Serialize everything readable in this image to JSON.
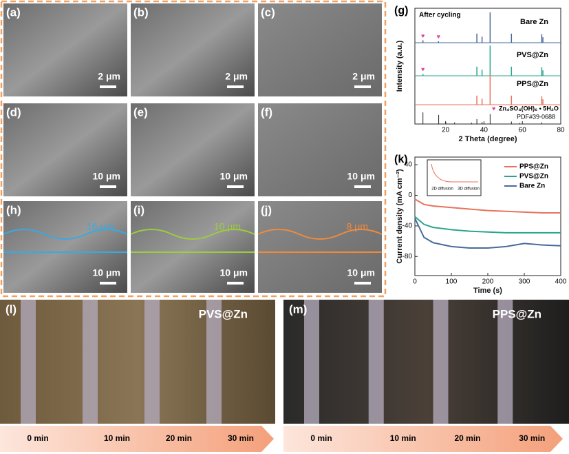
{
  "panels": [
    {
      "label": "(a)",
      "scale": "2 μm"
    },
    {
      "label": "(b)",
      "scale": "2 μm"
    },
    {
      "label": "(c)",
      "scale": "2 μm"
    },
    {
      "label": "(d)",
      "scale": "10 μm"
    },
    {
      "label": "(e)",
      "scale": "10 μm"
    },
    {
      "label": "(f)",
      "scale": "10 μm"
    },
    {
      "label": "(h)",
      "scale": "10 μm",
      "thickness": "16 μm"
    },
    {
      "label": "(i)",
      "scale": "10 μm",
      "thickness": "10 μm"
    },
    {
      "label": "(j)",
      "scale": "10 μm",
      "thickness": "8 μm"
    }
  ],
  "bottom": [
    {
      "label": "(l)",
      "sample": "PVS@Zn",
      "times": [
        "0 min",
        "10 min",
        "20 min",
        "30 min"
      ]
    },
    {
      "label": "(m)",
      "sample": "PPS@Zn",
      "times": [
        "0 min",
        "10 min",
        "20 min",
        "30 min"
      ]
    }
  ],
  "chart_data": [
    {
      "type": "stem",
      "panel_label": "(g)",
      "annotation": "After cycling",
      "x_label": "2 Theta (degree)",
      "y_label": "Intensity (a.u.)",
      "xlim": [
        4,
        80
      ],
      "xticks": [
        20,
        40,
        60,
        80
      ],
      "ylim": [
        0,
        100
      ],
      "x": [
        8.2,
        16.3,
        36.3,
        39.0,
        43.2,
        54.3,
        70.1,
        70.7
      ],
      "series": [
        {
          "name": "Bare Zn",
          "color": "#4a6a9a",
          "values": [
            8,
            5,
            30,
            20,
            100,
            30,
            28,
            18
          ]
        },
        {
          "name": "PVS@Zn",
          "color": "#2aa58c",
          "values": [
            6,
            0,
            30,
            20,
            100,
            30,
            28,
            18
          ]
        },
        {
          "name": "PPS@Zn",
          "color": "#e8735a",
          "values": [
            0,
            0,
            30,
            20,
            100,
            30,
            28,
            18
          ]
        }
      ],
      "reference": {
        "name": "PDF#39-0688",
        "phase": "Zn₄SO₄(OH)₆ • 5H₂O",
        "color": "#222222",
        "x": [
          8.2,
          16.4,
          20.1,
          24.7,
          33.5,
          36.3,
          39.0,
          43.2,
          54.3,
          58.6,
          70.1
        ],
        "values": [
          70,
          55,
          12,
          10,
          8,
          30,
          12,
          60,
          15,
          6,
          10
        ]
      }
    },
    {
      "type": "line",
      "panel_label": "(k)",
      "x_label": "Time (s)",
      "y_label": "Current density (mA cm⁻²)",
      "xlim": [
        0,
        400
      ],
      "xticks": [
        0,
        100,
        200,
        300,
        400
      ],
      "ylim": [
        -105,
        50
      ],
      "yticks": [
        40,
        0,
        -40,
        -80
      ],
      "inset_labels": [
        "2D diffusion",
        "3D diffusion"
      ],
      "x": [
        0,
        25,
        50,
        100,
        150,
        200,
        250,
        300,
        350,
        400
      ],
      "series": [
        {
          "name": "PPS@Zn",
          "color": "#e8735a",
          "values": [
            -5,
            -12,
            -14,
            -16,
            -18,
            -20,
            -21,
            -22,
            -23,
            -23
          ]
        },
        {
          "name": "PVS@Zn",
          "color": "#2aa58c",
          "values": [
            -28,
            -38,
            -42,
            -45,
            -47,
            -48,
            -49,
            -49,
            -49,
            -49
          ]
        },
        {
          "name": "Bare Zn",
          "color": "#4a6a9a",
          "values": [
            -30,
            -55,
            -62,
            -67,
            -69,
            -69,
            -67,
            -63,
            -65,
            -66
          ]
        }
      ]
    }
  ]
}
